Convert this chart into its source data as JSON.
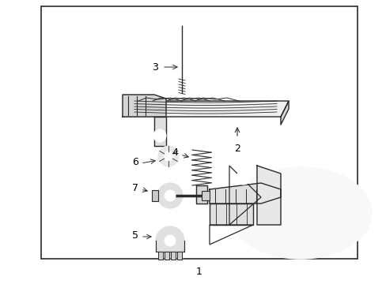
{
  "bg_color": "#ffffff",
  "border_color": "#2a2a2a",
  "line_color": "#2a2a2a",
  "label_color": "#000000",
  "fig_width": 4.89,
  "fig_height": 3.6,
  "dpi": 100
}
